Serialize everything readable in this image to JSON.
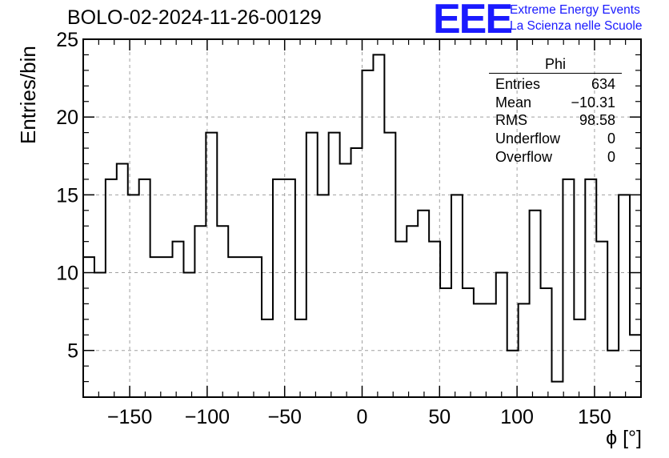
{
  "title": "BOLO-02-2024-11-26-00129",
  "logo": {
    "mark": "EEE",
    "line1": "Extreme Energy Events",
    "line2": "La Scienza nelle Scuole",
    "color": "#1a1aff"
  },
  "chart_data": {
    "type": "histogram",
    "title": "BOLO-02-2024-11-26-00129",
    "xlabel": "ϕ [°]",
    "ylabel": "Entries/bin",
    "xlim": [
      -180,
      180
    ],
    "ylim": [
      2,
      25
    ],
    "bin_width": 7.2,
    "xticks": [
      -150,
      -100,
      -50,
      0,
      50,
      100,
      150
    ],
    "yticks": [
      5,
      10,
      15,
      20,
      25
    ],
    "grid": true,
    "line_color": "#000000",
    "values": [
      11,
      10,
      16,
      17,
      15,
      16,
      11,
      11,
      12,
      10,
      13,
      19,
      13,
      11,
      11,
      11,
      7,
      16,
      16,
      7,
      19,
      15,
      19,
      17,
      18,
      23,
      24,
      19,
      12,
      13,
      14,
      12,
      9,
      15,
      9,
      8,
      8,
      10,
      5,
      8,
      14,
      9,
      3,
      16,
      7,
      16,
      12,
      5,
      15,
      6
    ]
  },
  "stats": {
    "name": "Phi",
    "rows": [
      {
        "label": "Entries",
        "value": "634"
      },
      {
        "label": "Mean",
        "value": "−10.31"
      },
      {
        "label": "RMS",
        "value": "98.58"
      },
      {
        "label": "Underflow",
        "value": "0"
      },
      {
        "label": "Overflow",
        "value": "0"
      }
    ]
  }
}
